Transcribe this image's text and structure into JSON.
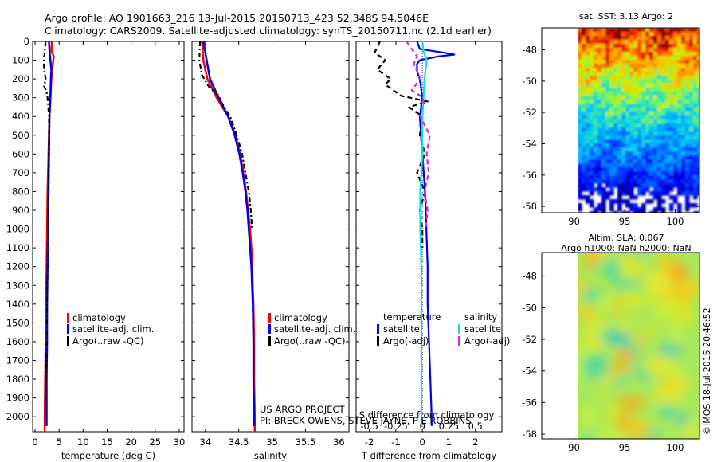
{
  "title_line1": "Argo profile: AO 1901663_216 13-Jul-2015 20150713_423 52.348S 94.5046E",
  "title_line2": "Climatology: CARS2009. Satellite-adjusted climatology: synTS_20150711.nc (2.1d earlier)",
  "sst_title": "sat. SST: 3.13 Argo: 2",
  "sla_title1": "Altim. SLA: 0.067",
  "sla_title2": "Argo h1000: NaN h2000: NaN",
  "credit": "©IMOS 18-Jul-2015 20:46:52",
  "project_line1": "US ARGO PROJECT",
  "project_line2": "PI: BRECK OWENS, STEVE JAYNE, P E ROBBINS",
  "legend_main": [
    "climatology",
    "satellite-adj. clim.",
    "Argo(..raw -QC)"
  ],
  "legend_diff": {
    "temp_header": "temperature",
    "sal_header": "salinity",
    "temp_items": [
      "satellite",
      "Argo(-adj)"
    ],
    "sal_items": [
      "satellite",
      "Argo(-adj)"
    ]
  },
  "colors": {
    "clim": "#ff0000",
    "sat": "#0000ee",
    "argo": "#000000",
    "sal_sat": "#00e5ee",
    "sal_argo": "#e020e0"
  },
  "chart_data": [
    {
      "type": "line",
      "title": "",
      "xlabel": "temperature (deg C)",
      "ylabel": "",
      "xlim": [
        -0.5,
        31
      ],
      "ylim": [
        2080,
        0
      ],
      "xticks": [
        "0",
        "5",
        "10",
        "15",
        "20",
        "25",
        "30"
      ],
      "xtick_values": [
        0,
        5,
        10,
        15,
        20,
        25,
        30
      ],
      "yticks": [
        "0",
        "100",
        "200",
        "300",
        "400",
        "500",
        "600",
        "700",
        "800",
        "900",
        "1000",
        "1100",
        "1200",
        "1300",
        "1400",
        "1500",
        "1600",
        "1700",
        "1800",
        "1900",
        "2000"
      ],
      "ytick_values": [
        0,
        100,
        200,
        300,
        400,
        500,
        600,
        700,
        800,
        900,
        1000,
        1100,
        1200,
        1300,
        1400,
        1500,
        1600,
        1700,
        1800,
        1900,
        2000
      ],
      "series": [
        {
          "name": "climatology",
          "depth": [
            0,
            50,
            80,
            100,
            150,
            200,
            300,
            400,
            600,
            800,
            1000,
            1200,
            1400,
            1600,
            1800,
            2000,
            2080
          ],
          "values": [
            3.5,
            3.4,
            3.9,
            3.8,
            3.6,
            3.4,
            3.2,
            3.0,
            2.8,
            2.6,
            2.5,
            2.4,
            2.3,
            2.2,
            2.1,
            2.0,
            2.0
          ]
        },
        {
          "name": "satellite-adj. clim.",
          "depth": [
            0,
            50,
            100,
            150,
            200,
            300,
            400,
            600,
            800,
            1000,
            1200,
            1400,
            1600,
            1800,
            2000,
            2050
          ],
          "values": [
            2.9,
            3.0,
            3.2,
            3.4,
            3.3,
            3.2,
            3.0,
            2.9,
            2.8,
            2.7,
            2.6,
            2.5,
            2.5,
            2.4,
            2.4,
            2.4
          ]
        },
        {
          "name": "Argo(..raw -QC)",
          "depth": [
            0,
            60,
            100,
            150,
            200,
            240,
            270,
            300,
            400,
            600,
            800,
            1000,
            1200,
            1400,
            1600,
            1800,
            2000
          ],
          "values": [
            2.2,
            2.0,
            1.8,
            1.9,
            2.2,
            1.9,
            2.4,
            2.6,
            2.9,
            2.9,
            2.8,
            2.7,
            2.6,
            2.5,
            2.4,
            2.3,
            2.2
          ]
        }
      ]
    },
    {
      "type": "line",
      "title": "",
      "xlabel": "salinity",
      "ylabel": "",
      "xlim": [
        33.8,
        36.15
      ],
      "ylim": [
        2080,
        0
      ],
      "xticks": [
        "34",
        "34.5",
        "35",
        "35.5",
        "36"
      ],
      "xtick_values": [
        34,
        34.5,
        35,
        35.5,
        36
      ],
      "series": [
        {
          "name": "climatology",
          "depth": [
            0,
            100,
            200,
            300,
            400,
            500,
            600,
            700,
            800,
            900,
            1000,
            1100,
            1200,
            1400,
            1600,
            1800,
            2000,
            2080
          ],
          "values": [
            33.95,
            33.97,
            34.03,
            34.17,
            34.34,
            34.45,
            34.52,
            34.57,
            34.61,
            34.64,
            34.67,
            34.69,
            34.7,
            34.72,
            34.73,
            34.73,
            34.74,
            34.74
          ]
        },
        {
          "name": "satellite-adj. clim.",
          "depth": [
            0,
            100,
            200,
            300,
            400,
            500,
            600,
            700,
            800,
            900,
            1000,
            1100,
            1200,
            1400,
            1600,
            1800,
            2000,
            2050
          ],
          "values": [
            33.97,
            34.02,
            34.07,
            34.2,
            34.34,
            34.44,
            34.51,
            34.56,
            34.6,
            34.63,
            34.65,
            34.67,
            34.69,
            34.71,
            34.72,
            34.72,
            34.73,
            34.73
          ]
        },
        {
          "name": "Argo(..raw -QC)",
          "depth": [
            0,
            100,
            180,
            240,
            290,
            330,
            400,
            500,
            600,
            700,
            800,
            900,
            1000
          ],
          "values": [
            33.92,
            33.91,
            33.95,
            34.05,
            34.2,
            34.25,
            34.37,
            34.47,
            34.55,
            34.6,
            34.65,
            34.68,
            34.7
          ]
        }
      ]
    },
    {
      "type": "line",
      "title": "",
      "xlabel": "T difference from climatology",
      "xlabel_top": "S difference from climatology",
      "ylabel": "",
      "xlim": [
        -2.5,
        3.0
      ],
      "xlim_top": [
        -0.625,
        0.75
      ],
      "ylim": [
        2080,
        0
      ],
      "xticks": [
        "-2",
        "-1",
        "0",
        "1",
        "2"
      ],
      "xtick_values": [
        -2,
        -1,
        0,
        1,
        2
      ],
      "xticks_top": [
        "-0.5",
        "-0.25",
        "0",
        "0.25",
        "0.5"
      ],
      "xtick_values_top": [
        -0.5,
        -0.25,
        0,
        0.25,
        0.5
      ],
      "series": [
        {
          "name": "temperature satellite",
          "axis": "T",
          "depth": [
            0,
            40,
            60,
            70,
            80,
            100,
            120,
            160,
            200,
            300,
            400,
            600,
            800,
            1000,
            1200,
            1400,
            1600,
            1800,
            2000,
            2050
          ],
          "values": [
            -0.2,
            -0.1,
            0.8,
            1.2,
            0.6,
            -0.1,
            -0.2,
            -0.2,
            -0.1,
            0.0,
            -0.1,
            0.0,
            0.1,
            0.15,
            0.2,
            0.2,
            0.25,
            0.3,
            0.35,
            0.35
          ]
        },
        {
          "name": "temperature Argo(-adj)",
          "axis": "T",
          "depth": [
            0,
            30,
            60,
            100,
            150,
            200,
            230,
            260,
            290,
            320,
            350,
            400,
            500,
            600,
            700,
            800,
            900,
            1000,
            1100
          ],
          "values": [
            -1.6,
            -1.7,
            -1.8,
            -1.4,
            -1.7,
            -1.2,
            -1.4,
            -1.1,
            -0.8,
            0.2,
            -0.5,
            0.0,
            -0.1,
            0.1,
            -0.2,
            0.1,
            -0.1,
            0.0,
            0.0
          ]
        },
        {
          "name": "salinity satellite",
          "axis": "S",
          "depth": [
            0,
            50,
            100,
            150,
            200,
            300,
            400,
            600,
            800,
            1000,
            1200,
            1400,
            1600,
            1800,
            2000,
            2050
          ],
          "values": [
            0.0,
            0.01,
            0.04,
            0.03,
            0.02,
            0.01,
            0.0,
            0.0,
            -0.02,
            -0.02,
            -0.01,
            -0.01,
            -0.01,
            -0.01,
            -0.01,
            -0.01
          ]
        },
        {
          "name": "salinity Argo(-adj)",
          "axis": "S",
          "depth": [
            0,
            80,
            120,
            200,
            260,
            300,
            400,
            500,
            600,
            700,
            800,
            900,
            1000
          ],
          "values": [
            -0.15,
            -0.05,
            -0.08,
            -0.02,
            -0.1,
            0.01,
            -0.02,
            0.07,
            0.04,
            0.06,
            0.02,
            0.05,
            0.03
          ]
        }
      ]
    },
    {
      "type": "heatmap",
      "title": "sat. SST: 3.13 Argo: 2",
      "xticks": [
        "90",
        "95",
        "100"
      ],
      "xtick_values": [
        90,
        95,
        100
      ],
      "yticks": [
        "-48",
        "-50",
        "-52",
        "-54",
        "-56",
        "-58"
      ],
      "ytick_values": [
        -48,
        -50,
        -52,
        -54,
        -56,
        -58
      ],
      "xlim": [
        86.8,
        102.4
      ],
      "ylim": [
        -58.4,
        -46.6
      ],
      "data_xlim": [
        89.8,
        102.4
      ]
    },
    {
      "type": "heatmap",
      "title": "Altim. SLA: 0.067",
      "xticks": [
        "90",
        "95",
        "100"
      ],
      "xtick_values": [
        90,
        95,
        100
      ],
      "yticks": [
        "-48",
        "-50",
        "-52",
        "-54",
        "-56",
        "-58"
      ],
      "ytick_values": [
        -48,
        -50,
        -52,
        -54,
        -56,
        -58
      ],
      "xlim": [
        86.8,
        102.4
      ],
      "ylim": [
        -58.3,
        -46.5
      ],
      "data_xlim": [
        89.8,
        102.4
      ]
    }
  ]
}
